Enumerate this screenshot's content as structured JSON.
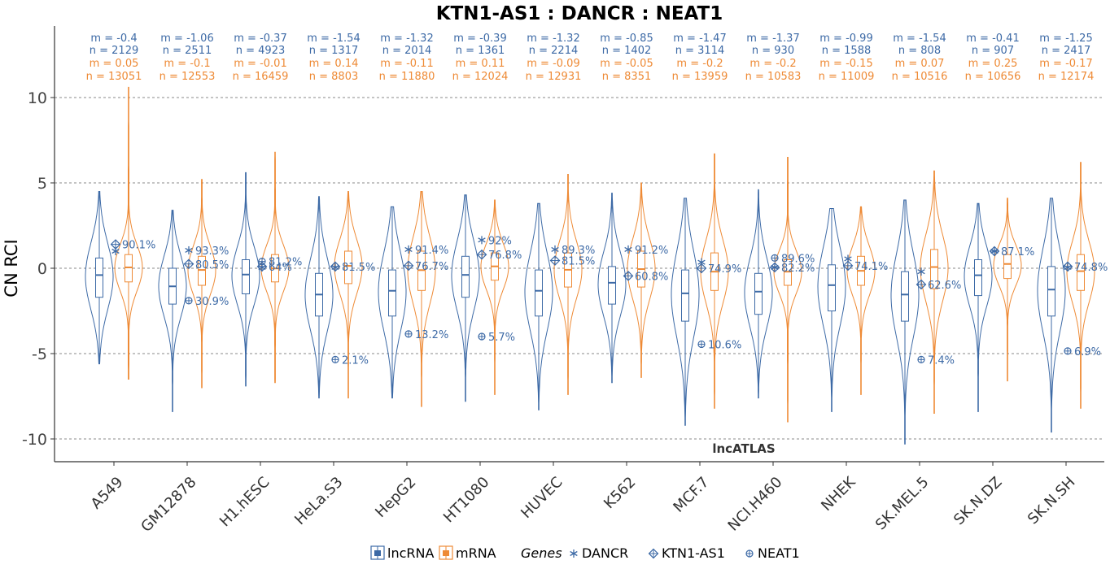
{
  "chart_data": {
    "type": "violin",
    "title": "KTN1-AS1 : DANCR : NEAT1",
    "ylabel": "CN RCI",
    "xlabel": "",
    "ylim": [
      -11,
      14
    ],
    "yticks": [
      -10,
      -5,
      0,
      5,
      10
    ],
    "ytick_labels": [
      "-10",
      "-5",
      "0",
      "5",
      "10"
    ],
    "grid": true,
    "source_label": "lncATLAS",
    "categories": [
      "A549",
      "GM12878",
      "H1.hESC",
      "HeLa.S3",
      "HepG2",
      "HT1080",
      "HUVEC",
      "K562",
      "MCF.7",
      "NCI.H460",
      "NHEK",
      "SK.MEL.5",
      "SK.N.DZ",
      "SK.N.SH"
    ],
    "series": [
      {
        "name": "lncRNA",
        "color": "#3d6aa6",
        "median": [
          -0.4,
          -1.06,
          -0.37,
          -1.54,
          -1.32,
          -0.39,
          -1.32,
          -0.85,
          -1.47,
          -1.37,
          -0.99,
          -1.54,
          -0.41,
          -1.25
        ],
        "q1": [
          -1.7,
          -2.1,
          -1.5,
          -2.8,
          -2.8,
          -1.7,
          -2.8,
          -2.1,
          -3.1,
          -2.7,
          -2.5,
          -3.1,
          -1.6,
          -2.8
        ],
        "q3": [
          0.6,
          0.0,
          0.5,
          -0.3,
          -0.1,
          0.7,
          -0.1,
          0.1,
          -0.1,
          -0.3,
          0.2,
          -0.2,
          0.5,
          0.1
        ],
        "min": [
          -5.6,
          -8.4,
          -6.9,
          -7.6,
          -7.6,
          -7.8,
          -8.3,
          -6.7,
          -9.2,
          -7.6,
          -8.4,
          -10.3,
          -8.4,
          -9.6
        ],
        "max": [
          4.5,
          3.4,
          5.6,
          4.2,
          3.6,
          4.3,
          3.8,
          4.4,
          4.1,
          4.6,
          3.5,
          4.0,
          3.8,
          4.1
        ],
        "stat_m": [
          "m = -0.4",
          "m = -1.06",
          "m = -0.37",
          "m = -1.54",
          "m = -1.32",
          "m = -0.39",
          "m = -1.32",
          "m = -0.85",
          "m = -1.47",
          "m = -1.37",
          "m = -0.99",
          "m = -1.54",
          "m = -0.41",
          "m = -1.25"
        ],
        "stat_n": [
          "n = 2129",
          "n = 2511",
          "n = 4923",
          "n = 1317",
          "n = 2014",
          "n = 1361",
          "n = 2214",
          "n = 1402",
          "n = 3114",
          "n = 930",
          "n = 1588",
          "n = 808",
          "n = 907",
          "n = 2417"
        ]
      },
      {
        "name": "mRNA",
        "color": "#ee8a35",
        "median": [
          0.05,
          -0.1,
          -0.01,
          0.14,
          -0.11,
          0.11,
          -0.09,
          -0.05,
          -0.2,
          -0.2,
          -0.15,
          0.07,
          0.25,
          -0.17
        ],
        "q1": [
          -0.8,
          -1.0,
          -0.8,
          -0.9,
          -1.3,
          -0.7,
          -1.1,
          -1.1,
          -1.3,
          -1.0,
          -1.0,
          -1.2,
          -0.6,
          -1.3
        ],
        "q3": [
          0.8,
          0.7,
          0.8,
          1.0,
          1.0,
          0.9,
          0.9,
          1.0,
          0.9,
          0.5,
          0.7,
          1.1,
          0.8,
          0.8
        ],
        "min": [
          -6.5,
          -7.0,
          -6.7,
          -7.6,
          -8.1,
          -7.4,
          -7.4,
          -6.4,
          -8.2,
          -9.0,
          -7.4,
          -8.5,
          -6.6,
          -8.2
        ],
        "max": [
          10.6,
          5.2,
          6.8,
          4.5,
          4.5,
          4.0,
          5.5,
          5.0,
          6.7,
          6.5,
          3.6,
          5.7,
          4.1,
          6.2
        ],
        "stat_m": [
          "m = 0.05",
          "m = -0.1",
          "m = -0.01",
          "m = 0.14",
          "m = -0.11",
          "m = 0.11",
          "m = -0.09",
          "m = -0.05",
          "m = -0.2",
          "m = -0.2",
          "m = -0.15",
          "m = 0.07",
          "m = 0.25",
          "m = -0.17"
        ],
        "stat_n": [
          "n = 13051",
          "n = 12553",
          "n = 16459",
          "n = 8803",
          "n = 11880",
          "n = 12024",
          "n = 12931",
          "n = 8351",
          "n = 13959",
          "n = 10583",
          "n = 11009",
          "n = 10516",
          "n = 10656",
          "n = 12174"
        ]
      }
    ],
    "genes": [
      {
        "name": "DANCR",
        "symbol": "asterisk",
        "values": [
          1.0,
          1.05,
          0.05,
          0.05,
          1.1,
          1.65,
          1.1,
          1.1,
          0.35,
          0.05,
          0.55,
          -0.2,
          1.0,
          0.05
        ],
        "percent_labels": [
          "",
          "93.3%",
          "",
          "",
          "91.4%",
          "92%",
          "89.3%",
          "91.2%",
          "",
          "",
          "",
          "",
          "",
          ""
        ]
      },
      {
        "name": "KTN1-AS1",
        "symbol": "diamond-plus",
        "values": [
          1.4,
          0.25,
          0.1,
          0.1,
          0.15,
          0.8,
          0.45,
          -0.45,
          0.0,
          0.05,
          0.15,
          -0.95,
          1.0,
          0.1
        ],
        "percent_labels": [
          "90.1%",
          "80.5%",
          "64%",
          "81.5%",
          "76.7%",
          "76.8%",
          "81.5%",
          "60.8%",
          "74.9%",
          "82.2%",
          "74.1%",
          "62.6%",
          "87.1%",
          "74.8%"
        ]
      },
      {
        "name": "NEAT1",
        "symbol": "circle-plus",
        "values": [
          null,
          -1.9,
          0.4,
          -5.35,
          -3.85,
          -4.0,
          null,
          null,
          -4.45,
          0.6,
          null,
          -5.35,
          null,
          -4.85
        ],
        "percent_labels": [
          "",
          "30.9%",
          "81.2%",
          "2.1%",
          "13.2%",
          "5.7%",
          "",
          "",
          "10.6%",
          "89.6%",
          "",
          "7.4%",
          "",
          "6.9%"
        ]
      }
    ],
    "legend": {
      "placement": "bottom",
      "series_labels": [
        "lncRNA",
        "mRNA"
      ],
      "genes_title": "Genes",
      "gene_labels": [
        "DANCR",
        "KTN1-AS1",
        "NEAT1"
      ]
    }
  }
}
